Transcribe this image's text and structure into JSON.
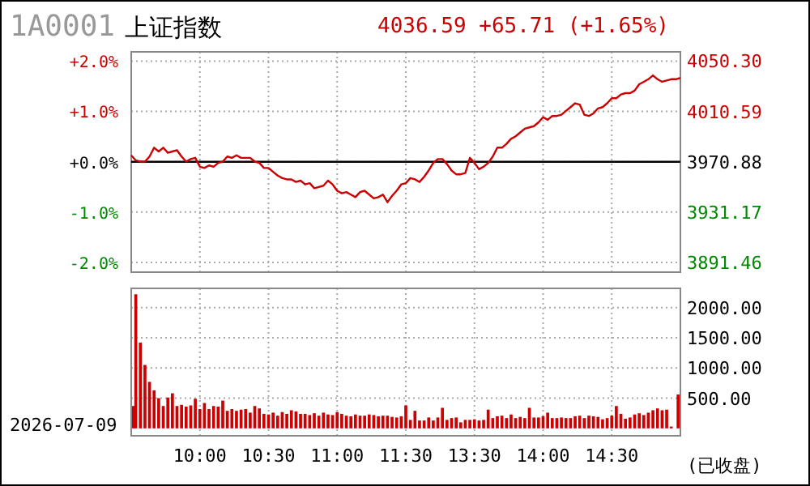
{
  "chart_data": [
    {
      "type": "line",
      "title": "1A0001 上证指数",
      "subtitle": "4036.59 +65.71 (+1.65%)",
      "categories": [
        null,
        null,
        null,
        null,
        null,
        null,
        null,
        null,
        null,
        null,
        null,
        null,
        null,
        null,
        null,
        null,
        null,
        null,
        null,
        null,
        null,
        null,
        null,
        null,
        null,
        null,
        null,
        null,
        null,
        null,
        null,
        null,
        null,
        null,
        null,
        null,
        null,
        null,
        null,
        null,
        null,
        null,
        null,
        null,
        null,
        null,
        null,
        null,
        null,
        null,
        null,
        null,
        null,
        null,
        null,
        null,
        null,
        null,
        null,
        null,
        null,
        null,
        null,
        null,
        null,
        null,
        null,
        null,
        null,
        null,
        null,
        null,
        null,
        null,
        null,
        null,
        null,
        null,
        null,
        null,
        null,
        null,
        null,
        null,
        null,
        null,
        null,
        null,
        null,
        null,
        null,
        null,
        null,
        null,
        null,
        null,
        null,
        null,
        null,
        null,
        null,
        null,
        null,
        null,
        null,
        null,
        null,
        null,
        null,
        null,
        null,
        null,
        null,
        null,
        null,
        null,
        null,
        null,
        null,
        null,
        null
      ],
      "series": [
        {
          "color": "#cc0000",
          "values": [
            3976,
            3972,
            3971,
            3971,
            3975,
            3982,
            3979,
            3982,
            3978,
            3979,
            3980,
            3975,
            3971,
            3973,
            3974,
            3967,
            3966,
            3968,
            3967,
            3970,
            3971,
            3975,
            3974,
            3976,
            3974,
            3974,
            3974,
            3971,
            3970,
            3966,
            3966,
            3963,
            3960,
            3958,
            3957,
            3957,
            3955,
            3956,
            3953,
            3954,
            3950,
            3951,
            3952,
            3956,
            3953,
            3948,
            3946,
            3947,
            3945,
            3943,
            3947,
            3948,
            3945,
            3942,
            3943,
            3945,
            3939,
            3944,
            3948,
            3953,
            3954,
            3958,
            3957,
            3955,
            3959,
            3964,
            3970,
            3973,
            3973,
            3969,
            3964,
            3961,
            3961,
            3962,
            3974,
            3970,
            3965,
            3967,
            3970,
            3975,
            3982,
            3982,
            3985,
            3989,
            3991,
            3994,
            3997,
            3998,
            3999,
            4002,
            4006,
            4004,
            4007,
            4007,
            4008,
            4011,
            4014,
            4017,
            4016,
            4008,
            4007,
            4009,
            4013,
            4014,
            4017,
            4021,
            4021,
            4024,
            4025,
            4025,
            4027,
            4032,
            4034,
            4036,
            4039,
            4036,
            4034,
            4035,
            4036,
            4036,
            4037
          ]
        }
      ],
      "ylim": [
        3883.8,
        4057.6
      ],
      "yticks": [
        {
          "value": 3891.46,
          "label": "3891.46"
        },
        {
          "value": 3931.17,
          "label": "3931.17"
        },
        {
          "value": 3970.88,
          "label": "3970.88"
        },
        {
          "value": 4010.59,
          "label": "4010.59"
        },
        {
          "value": 4050.3,
          "label": "4050.30"
        }
      ],
      "y2lim": [
        -2.19,
        2.18
      ],
      "y2ticks": [
        {
          "value": -2,
          "label": "-2.0%"
        },
        {
          "value": -1,
          "label": "-1.0%"
        },
        {
          "value": 0,
          "label": "+0.0%"
        },
        {
          "value": 1,
          "label": "+1.0%"
        },
        {
          "value": 2,
          "label": "+2.0%"
        }
      ],
      "ref_lines": [
        {
          "axis": "y",
          "value": 3970.88,
          "color": "#000000"
        }
      ],
      "grid": true,
      "tick_labels": "y"
    },
    {
      "type": "bar",
      "color": "#cc0000",
      "categories": [
        null,
        null,
        null,
        null,
        null,
        null,
        null,
        null,
        null,
        null,
        null,
        null,
        null,
        null,
        null,
        "10:00",
        null,
        null,
        null,
        null,
        null,
        null,
        null,
        null,
        null,
        null,
        null,
        null,
        null,
        null,
        "10:30",
        null,
        null,
        null,
        null,
        null,
        null,
        null,
        null,
        null,
        null,
        null,
        null,
        null,
        null,
        "11:00",
        null,
        null,
        null,
        null,
        null,
        null,
        null,
        null,
        null,
        null,
        null,
        null,
        null,
        null,
        "11:30",
        null,
        null,
        null,
        null,
        null,
        null,
        null,
        null,
        null,
        null,
        null,
        null,
        null,
        null,
        "13:30",
        null,
        null,
        null,
        null,
        null,
        null,
        null,
        null,
        null,
        null,
        null,
        null,
        null,
        null,
        "14:00",
        null,
        null,
        null,
        null,
        null,
        null,
        null,
        null,
        null,
        null,
        null,
        null,
        null,
        null,
        "14:30",
        null,
        null,
        null,
        null,
        null,
        null,
        null,
        null,
        null,
        null,
        null,
        null,
        null,
        null,
        null
      ],
      "values": [
        370,
        2220,
        1420,
        1050,
        770,
        630,
        500,
        370,
        510,
        580,
        370,
        390,
        360,
        380,
        490,
        320,
        420,
        320,
        370,
        360,
        460,
        290,
        320,
        290,
        310,
        320,
        260,
        370,
        330,
        240,
        230,
        260,
        210,
        270,
        240,
        300,
        280,
        240,
        240,
        220,
        250,
        210,
        260,
        230,
        220,
        270,
        240,
        210,
        200,
        230,
        210,
        210,
        230,
        220,
        200,
        210,
        210,
        190,
        180,
        200,
        380,
        140,
        290,
        130,
        130,
        180,
        130,
        180,
        340,
        140,
        170,
        180,
        100,
        140,
        140,
        150,
        130,
        140,
        310,
        170,
        200,
        210,
        170,
        230,
        170,
        190,
        170,
        340,
        180,
        180,
        200,
        260,
        170,
        170,
        180,
        170,
        170,
        200,
        210,
        170,
        210,
        200,
        190,
        150,
        170,
        210,
        370,
        240,
        160,
        180,
        230,
        250,
        220,
        260,
        300,
        330,
        300,
        310,
        30,
        null,
        560
      ],
      "ylim": [
        -123,
        2318
      ],
      "yticks": [
        {
          "value": 500,
          "label": "500.00"
        },
        {
          "value": 1000,
          "label": "1000.00"
        },
        {
          "value": 1500,
          "label": "1500.00"
        },
        {
          "value": 2000,
          "label": "2000.00"
        }
      ],
      "grid": true,
      "annotations": [
        "2026-07-09",
        "(已收盘)"
      ]
    }
  ]
}
